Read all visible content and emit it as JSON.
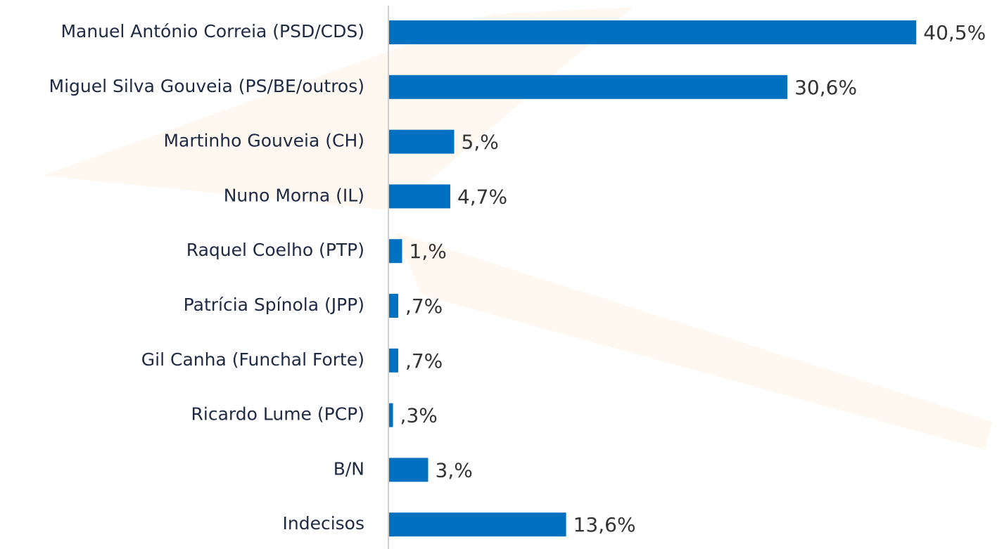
{
  "chart_data": {
    "type": "barh",
    "categories": [
      "Manuel António Correia (PSD/CDS)",
      "Miguel Silva Gouveia (PS/BE/outros)",
      "Martinho Gouveia (CH)",
      "Nuno Morna (IL)",
      "Raquel Coelho (PTP)",
      "Patrícia Spínola (JPP)",
      "Gil Canha (Funchal Forte)",
      "Ricardo Lume (PCP)",
      "B/N",
      "Indecisos"
    ],
    "values": [
      40.5,
      30.6,
      5,
      4.7,
      1,
      0.7,
      0.7,
      0.3,
      3,
      13.6
    ],
    "value_labels": [
      "40,5%",
      "30,6%",
      "5,%",
      "4,7%",
      "1,%",
      ",7%",
      ",7%",
      ",3%",
      "3,%",
      "13,6%"
    ],
    "color": "#0070c0",
    "xlim": [
      0,
      45
    ]
  }
}
